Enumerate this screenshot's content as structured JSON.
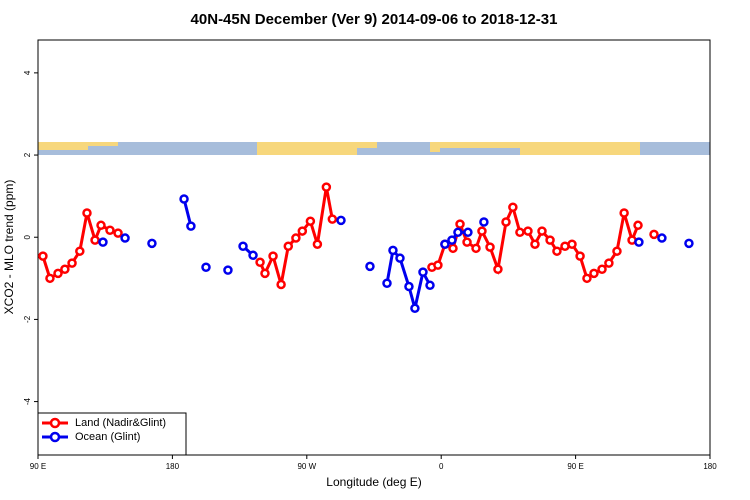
{
  "chart_data": {
    "type": "line",
    "title": "40N-45N December (Ver 9)   2014-09-06 to 2018-12-31",
    "x_label": "Longitude (deg E)",
    "y_label": "XCO2 - MLO trend (ppm)",
    "xlim": [
      90,
      540
    ],
    "ylim": [
      -5.3,
      4.8
    ],
    "xticks": [
      {
        "value": 90,
        "label": "90 E"
      },
      {
        "value": 180,
        "label": "180"
      },
      {
        "value": 270,
        "label": "90 W"
      },
      {
        "value": 360,
        "label": "0"
      },
      {
        "value": 450,
        "label": "90 E"
      },
      {
        "value": 540,
        "label": "180"
      }
    ],
    "yticks": [
      -4,
      -2,
      0,
      2,
      4
    ],
    "legend": "bottom-left",
    "series": [
      {
        "name": "Land (Nadir&Glint)",
        "color": "#ff0000",
        "x": [
          93.3,
          98,
          103.4,
          108,
          112.8,
          118,
          122.8,
          128.2,
          132.2,
          138.2,
          143.6,
          null,
          238.7,
          242,
          247.4,
          252.8,
          257.6,
          262.7,
          267,
          272.4,
          277.1,
          283.1,
          287.1,
          null,
          353.8,
          357.8,
          362.5,
          367.9,
          372.6,
          377.3,
          383.3,
          387.3,
          392.7,
          398,
          403.4,
          408,
          412.7,
          418.1,
          422.8,
          427.5,
          432.9,
          437.5,
          442.9,
          447.6,
          453,
          457.6,
          462.3,
          467.7,
          472.3,
          477.7,
          482.5,
          487.8,
          491.8,
          null,
          502.5
        ],
        "values": [
          -0.46,
          -1.0,
          -0.88,
          -0.78,
          -0.63,
          -0.34,
          0.59,
          -0.07,
          0.29,
          0.17,
          0.1,
          null,
          -0.61,
          -0.88,
          -0.46,
          -1.15,
          -0.22,
          -0.02,
          0.15,
          0.39,
          -0.17,
          1.22,
          0.44,
          null,
          -0.73,
          -0.68,
          -0.17,
          -0.27,
          0.32,
          -0.12,
          -0.27,
          0.15,
          -0.24,
          -0.78,
          0.37,
          0.73,
          0.12,
          0.15,
          -0.17,
          0.15,
          -0.07,
          -0.34,
          -0.22,
          -0.17,
          -0.46,
          -1.0,
          -0.88,
          -0.78,
          -0.63,
          -0.34,
          0.59,
          -0.07,
          0.29,
          null,
          0.07
        ]
      },
      {
        "name": "Ocean (Glint)",
        "color": "#0000ee",
        "x": [
          133.5,
          null,
          148.3,
          null,
          166.3,
          null,
          187.8,
          192.4,
          null,
          202.5,
          null,
          217.2,
          null,
          227.3,
          234,
          null,
          292.9,
          null,
          312.3,
          null,
          323.7,
          327.7,
          332.4,
          338.4,
          342.4,
          347.8,
          352.5,
          null,
          362.5,
          367.2,
          371.2,
          377.9,
          null,
          388.6,
          null,
          492.4,
          null,
          507.8,
          null,
          525.9
        ],
        "values": [
          -0.12,
          null,
          -0.02,
          null,
          -0.15,
          null,
          0.93,
          0.27,
          null,
          -0.73,
          null,
          -0.8,
          null,
          -0.22,
          -0.44,
          null,
          0.41,
          null,
          -0.71,
          null,
          -1.12,
          -0.32,
          -0.51,
          -1.2,
          -1.73,
          -0.85,
          -1.17,
          null,
          -0.17,
          -0.07,
          0.12,
          0.12,
          null,
          0.37,
          null,
          -0.12,
          null,
          -0.02,
          null,
          -0.15
        ]
      }
    ]
  }
}
